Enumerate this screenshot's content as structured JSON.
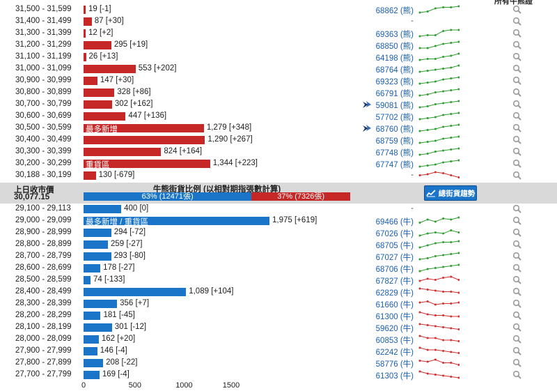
{
  "header": {
    "cut_label": "所有牛熊證"
  },
  "scale": {
    "ticks": [
      0,
      500,
      1000,
      1500
    ]
  },
  "colors": {
    "bear": "#c62828",
    "bull": "#1a75c9",
    "spark_green": "#2e9e2e",
    "spark_red": "#d32f2f",
    "code": "#1a5fb4"
  },
  "bear_rows": [
    {
      "range": "31,500 - 31,599",
      "count": 19,
      "label": "19 [-1]",
      "tag": "",
      "code": "68862 (熊)",
      "flag": false,
      "trend": "up",
      "spark": [
        2,
        3,
        6,
        7,
        7,
        8
      ]
    },
    {
      "range": "31,400 - 31,499",
      "count": 87,
      "label": "87 [+30]",
      "tag": "",
      "code": "-",
      "flag": false,
      "trend": "none",
      "spark": []
    },
    {
      "range": "31,300 - 31,399",
      "count": 12,
      "label": "12 [+2]",
      "tag": "",
      "code": "69363 (熊)",
      "flag": false,
      "trend": "up",
      "spark": [
        2,
        3,
        3,
        7,
        8,
        8
      ]
    },
    {
      "range": "31,200 - 31,299",
      "count": 295,
      "label": "295 [+19]",
      "tag": "",
      "code": "68850 (熊)",
      "flag": false,
      "trend": "up",
      "spark": [
        2,
        2,
        4,
        6,
        7,
        8
      ]
    },
    {
      "range": "31,100 - 31,199",
      "count": 26,
      "label": "26 [+13]",
      "tag": "",
      "code": "64198 (熊)",
      "flag": false,
      "trend": "up",
      "spark": [
        2,
        3,
        3,
        5,
        6,
        8
      ]
    },
    {
      "range": "31,000 - 31,099",
      "count": 553,
      "label": "553 [+202]",
      "tag": "",
      "code": "68764 (熊)",
      "flag": false,
      "trend": "up",
      "spark": [
        2,
        3,
        4,
        5,
        6,
        8
      ]
    },
    {
      "range": "30,900 - 30,999",
      "count": 147,
      "label": "147 [+30]",
      "tag": "",
      "code": "69323 (熊)",
      "flag": false,
      "trend": "up",
      "spark": [
        2,
        3,
        4,
        6,
        7,
        8
      ]
    },
    {
      "range": "30,800 - 30,899",
      "count": 328,
      "label": "328 [+86]",
      "tag": "",
      "code": "66791 (熊)",
      "flag": false,
      "trend": "up",
      "spark": [
        2,
        3,
        5,
        6,
        7,
        8
      ]
    },
    {
      "range": "30,700 - 30,799",
      "count": 302,
      "label": "302 [+162]",
      "tag": "",
      "code": "59081 (熊)",
      "flag": true,
      "trend": "up",
      "spark": [
        2,
        3,
        5,
        6,
        7,
        8
      ]
    },
    {
      "range": "30,600 - 30,699",
      "count": 447,
      "label": "447 [+136]",
      "tag": "",
      "code": "57702 (熊)",
      "flag": false,
      "trend": "up",
      "spark": [
        2,
        3,
        4,
        6,
        7,
        8
      ]
    },
    {
      "range": "30,500 - 30,599",
      "count": 1279,
      "label": "1,279 [+348]",
      "tag": "最多新增",
      "code": "68760 (熊)",
      "flag": true,
      "trend": "up",
      "spark": [
        2,
        3,
        4,
        6,
        7,
        8
      ]
    },
    {
      "range": "30,400 - 30,499",
      "count": 1290,
      "label": "1,290 [+267]",
      "tag": "",
      "code": "68759 (熊)",
      "flag": false,
      "trend": "up",
      "spark": [
        2,
        3,
        4,
        6,
        7,
        8
      ]
    },
    {
      "range": "30,300 - 30,399",
      "count": 824,
      "label": "824 [+164]",
      "tag": "",
      "code": "67748 (熊)",
      "flag": false,
      "trend": "up",
      "spark": [
        2,
        3,
        5,
        6,
        7,
        8
      ]
    },
    {
      "range": "30,200 - 30,299",
      "count": 1344,
      "label": "1,344 [+223]",
      "tag": "重貨區",
      "code": "67747 (熊)",
      "flag": false,
      "trend": "up",
      "spark": [
        2,
        3,
        4,
        6,
        7,
        8
      ]
    },
    {
      "range": "30,188 - 30,199",
      "count": 130,
      "label": "130 [-679]",
      "tag": "",
      "code": "-",
      "flag": false,
      "trend": "down",
      "spark": [
        5,
        6,
        8,
        7,
        5,
        3
      ]
    }
  ],
  "middle": {
    "prev_close_label": "上日收市價",
    "prev_close_value": "30,077.15",
    "title": "牛熊街貨比例 (以相對期指張數計算)",
    "bull_pct": 63,
    "bull_text": "63% (12471張)",
    "bear_text": "37% (7326張)",
    "trend_button": "總街貨趨勢"
  },
  "bull_rows": [
    {
      "range": "29,100 - 29,113",
      "count": 400,
      "label": "400 [0]",
      "tag": "",
      "code": "-",
      "trend": "none",
      "spark": []
    },
    {
      "range": "29,000 - 29,099",
      "count": 1975,
      "label": "1,975 [+619]",
      "tag": "最多新增 / 重貨區",
      "code": "69466 (牛)",
      "trend": "up",
      "spark": [
        3,
        6,
        4,
        7,
        6,
        8
      ]
    },
    {
      "range": "28,900 - 28,999",
      "count": 294,
      "label": "294 [-72]",
      "tag": "",
      "code": "67026 (牛)",
      "trend": "up",
      "spark": [
        2,
        4,
        5,
        4,
        7,
        5
      ]
    },
    {
      "range": "28,800 - 28,899",
      "count": 259,
      "label": "259 [-27]",
      "tag": "",
      "code": "68705 (牛)",
      "trend": "up",
      "spark": [
        2,
        4,
        6,
        7,
        7,
        8
      ]
    },
    {
      "range": "28,700 - 28,799",
      "count": 293,
      "label": "293 [-80]",
      "tag": "",
      "code": "67027 (牛)",
      "trend": "up",
      "spark": [
        2,
        3,
        5,
        6,
        7,
        8
      ]
    },
    {
      "range": "28,600 - 28,699",
      "count": 178,
      "label": "178 [-27]",
      "tag": "",
      "code": "68706 (牛)",
      "trend": "up",
      "spark": [
        2,
        4,
        5,
        6,
        7,
        8
      ]
    },
    {
      "range": "28,500 - 28,599",
      "count": 74,
      "label": "74 [-133]",
      "tag": "",
      "code": "67827 (牛)",
      "trend": "down",
      "spark": [
        4,
        6,
        5,
        7,
        8,
        5
      ]
    },
    {
      "range": "28,400 - 28,499",
      "count": 1089,
      "label": "1,089 [+104]",
      "tag": "",
      "code": "62829 (牛)",
      "trend": "down",
      "spark": [
        8,
        7,
        6,
        5,
        5,
        4
      ]
    },
    {
      "range": "28,300 - 28,399",
      "count": 356,
      "label": "356 [+7]",
      "tag": "",
      "code": "61660 (牛)",
      "trend": "down",
      "spark": [
        6,
        7,
        4,
        5,
        5,
        6
      ]
    },
    {
      "range": "28,200 - 28,299",
      "count": 181,
      "label": "181 [-45]",
      "tag": "",
      "code": "61300 (牛)",
      "trend": "down",
      "spark": [
        8,
        6,
        5,
        5,
        4,
        4
      ]
    },
    {
      "range": "28,100 - 28,199",
      "count": 301,
      "label": "301 [-12]",
      "tag": "",
      "code": "59620 (牛)",
      "trend": "down",
      "spark": [
        8,
        7,
        6,
        5,
        4,
        3
      ]
    },
    {
      "range": "28,000 - 28,099",
      "count": 162,
      "label": "162 [+20]",
      "tag": "",
      "code": "60853 (牛)",
      "trend": "down",
      "spark": [
        8,
        6,
        6,
        4,
        4,
        3
      ]
    },
    {
      "range": "27,900 - 27,999",
      "count": 146,
      "label": "146 [-4]",
      "tag": "",
      "code": "62242 (牛)",
      "trend": "down",
      "spark": [
        8,
        6,
        6,
        5,
        4,
        3
      ]
    },
    {
      "range": "27,800 - 27,899",
      "count": 208,
      "label": "208 [-22]",
      "tag": "",
      "code": "58776 (牛)",
      "trend": "down",
      "spark": [
        7,
        6,
        8,
        5,
        5,
        3
      ]
    },
    {
      "range": "27,700 - 27,799",
      "count": 169,
      "label": "169 [-4]",
      "tag": "",
      "code": "61303 (牛)",
      "trend": "down",
      "spark": [
        8,
        6,
        5,
        4,
        3,
        2
      ]
    }
  ]
}
